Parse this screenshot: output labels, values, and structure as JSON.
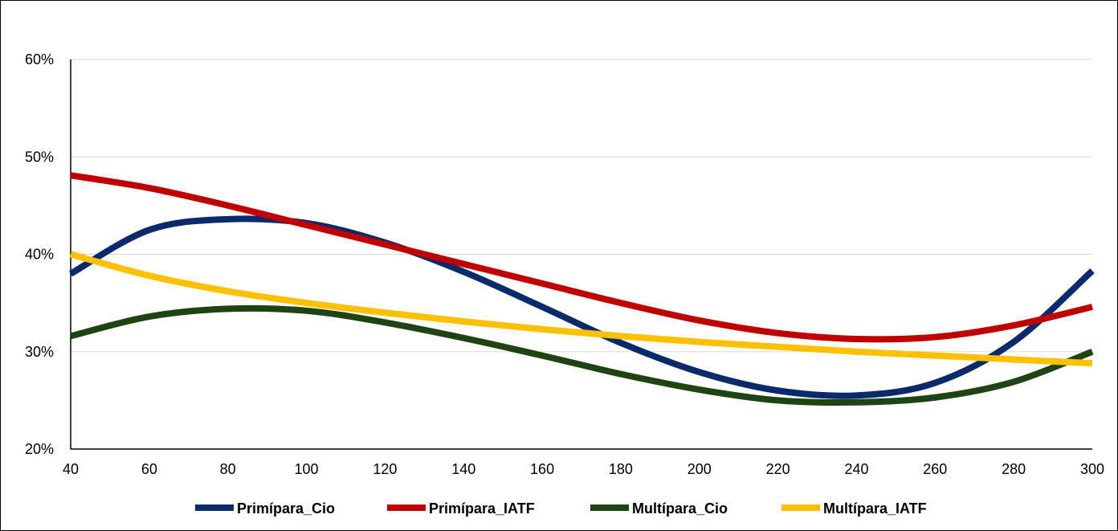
{
  "chart_data": {
    "type": "line",
    "title": "",
    "xlabel": "",
    "ylabel": "",
    "xlim": [
      40,
      300
    ],
    "ylim": [
      20,
      60
    ],
    "x_ticks": [
      40,
      60,
      80,
      100,
      120,
      140,
      160,
      180,
      200,
      220,
      240,
      260,
      280,
      300
    ],
    "y_ticks": [
      20,
      30,
      40,
      50,
      60
    ],
    "y_tick_labels": [
      "20%",
      "30%",
      "40%",
      "50%",
      "60%"
    ],
    "grid": "horizontal",
    "legend_position": "bottom",
    "x": [
      40,
      60,
      80,
      100,
      120,
      140,
      160,
      180,
      200,
      220,
      240,
      260,
      280,
      300
    ],
    "series": [
      {
        "name": "Primípara_Cio",
        "color": "#0a2a6b",
        "values": [
          38.0,
          42.5,
          43.6,
          43.2,
          41.2,
          38.2,
          34.6,
          30.9,
          27.9,
          26.0,
          25.5,
          26.8,
          31.0,
          38.3
        ]
      },
      {
        "name": "Primípara_IATF",
        "color": "#c00000",
        "values": [
          48.1,
          46.8,
          45.0,
          43.0,
          41.0,
          39.0,
          37.0,
          35.0,
          33.2,
          31.9,
          31.3,
          31.5,
          32.7,
          34.6
        ]
      },
      {
        "name": "Multípara_Cio",
        "color": "#1e4414",
        "values": [
          31.6,
          33.6,
          34.4,
          34.2,
          33.0,
          31.4,
          29.6,
          27.7,
          26.1,
          25.0,
          24.8,
          25.3,
          26.9,
          30.0
        ]
      },
      {
        "name": "Multípara_IATF",
        "color": "#ffc000",
        "values": [
          40.0,
          37.8,
          36.2,
          35.0,
          34.0,
          33.1,
          32.3,
          31.6,
          31.0,
          30.5,
          30.0,
          29.6,
          29.2,
          28.8
        ]
      }
    ]
  }
}
